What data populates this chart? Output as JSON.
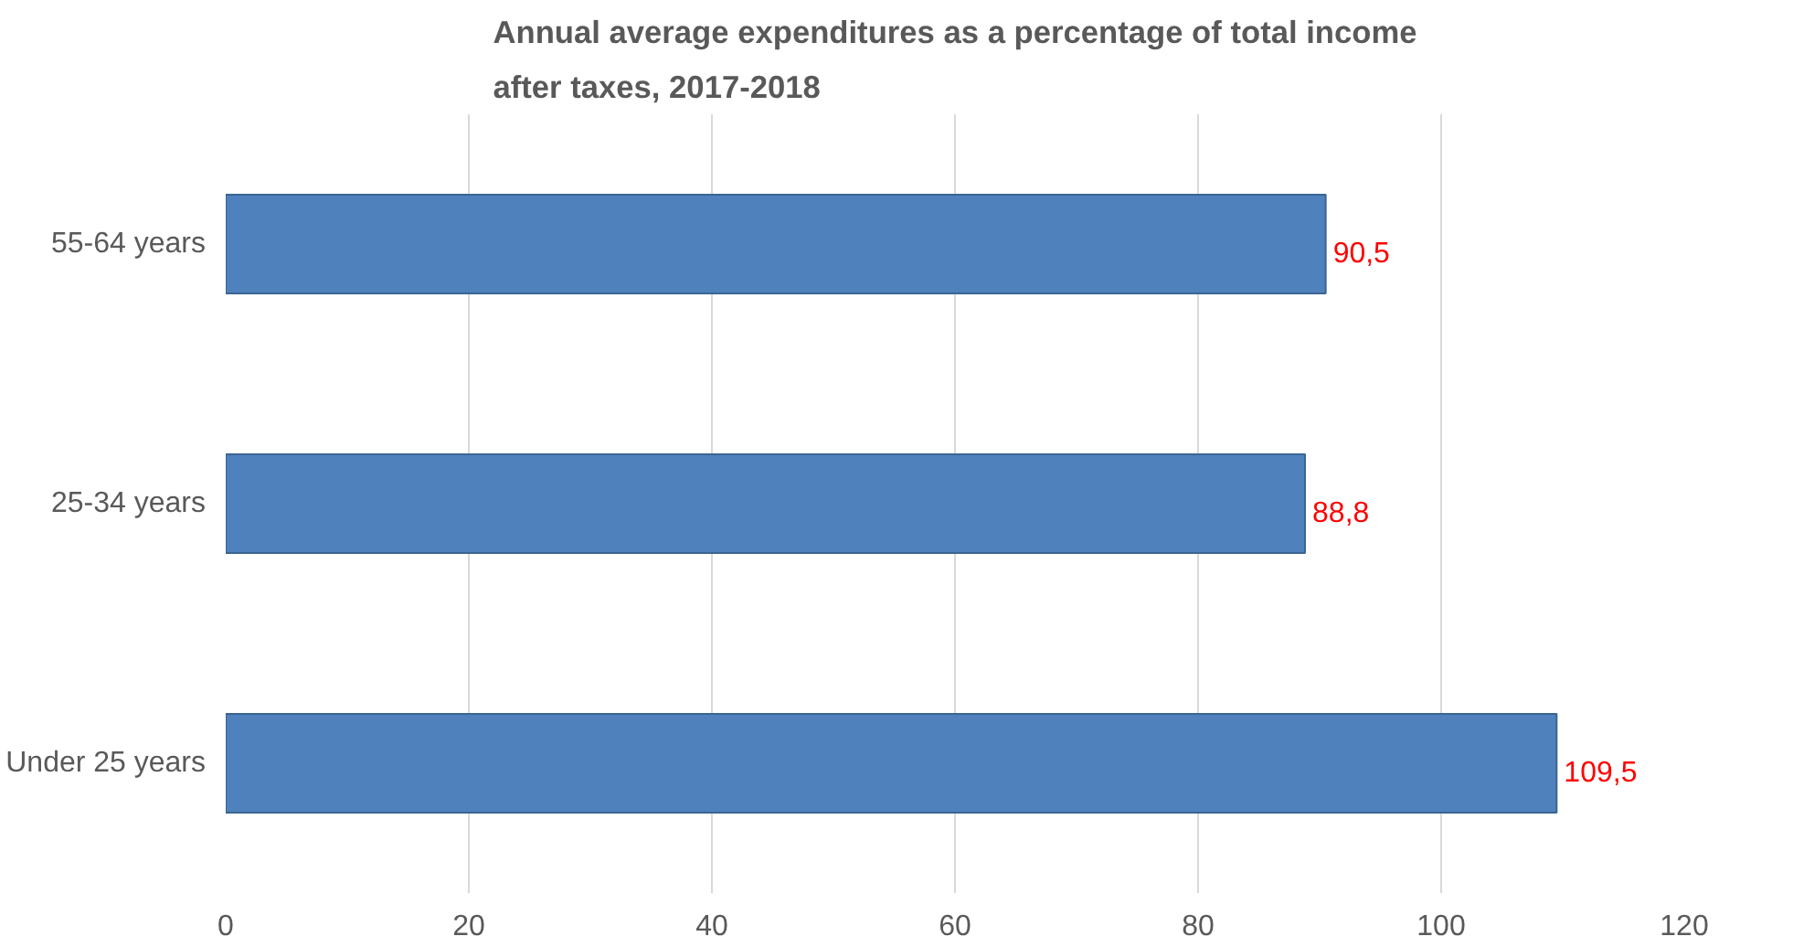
{
  "chart_data": {
    "type": "bar",
    "orientation": "horizontal",
    "title": "Annual average expenditures as a percentage of total income after taxes, 2017-2018",
    "categories": [
      "55-64 years",
      "25-34 years",
      "Under 25 years"
    ],
    "values": [
      90.5,
      88.8,
      109.5
    ],
    "value_labels": [
      "90,5",
      "88,8",
      "109,5"
    ],
    "color": "#4f81bd",
    "xlim": [
      0,
      120
    ],
    "xticks": [
      0,
      20,
      40,
      60,
      80,
      100,
      120
    ],
    "grid": "x"
  }
}
